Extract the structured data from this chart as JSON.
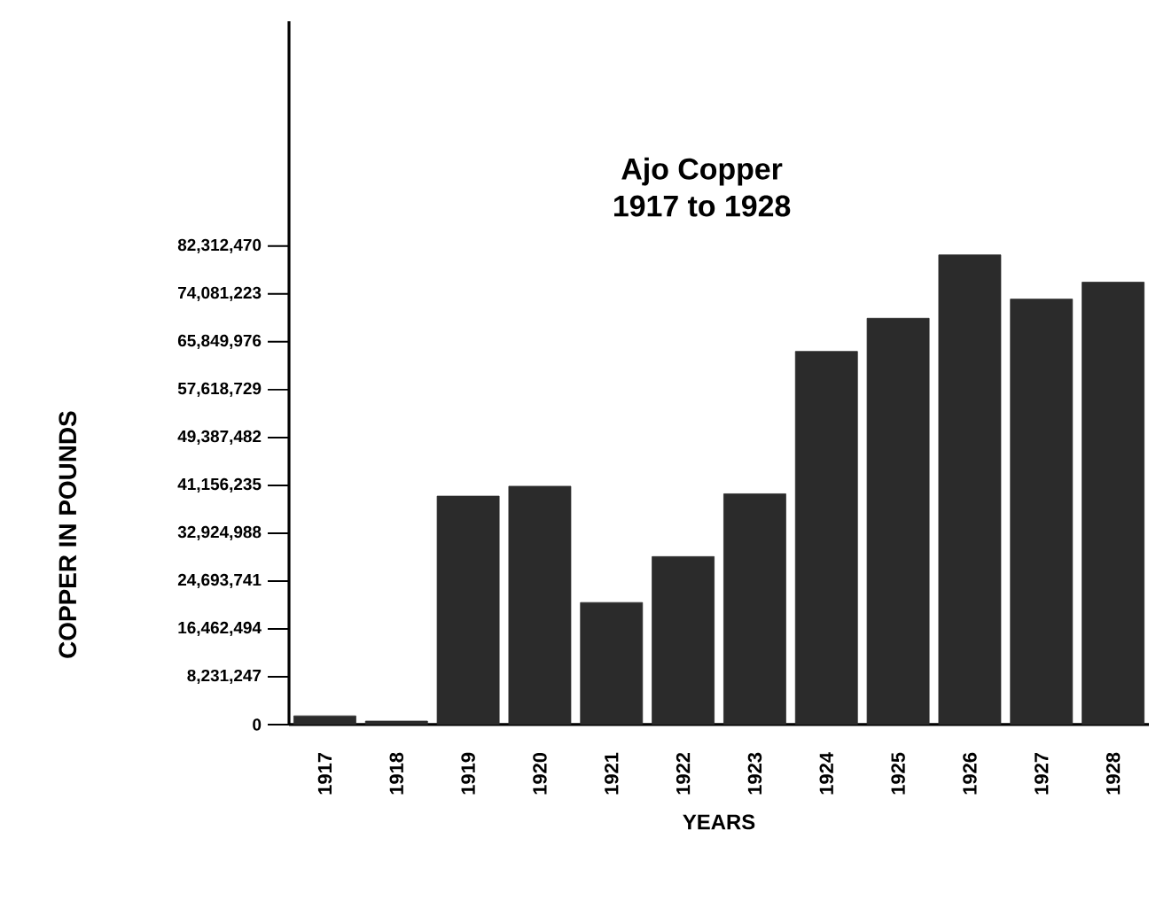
{
  "chart_data": {
    "type": "bar",
    "title": "Ajo Copper",
    "subtitle": "1917 to 1928",
    "xlabel": "YEARS",
    "ylabel": "COPPER IN POUNDS",
    "categories": [
      "1917",
      "1918",
      "1919",
      "1920",
      "1921",
      "1922",
      "1923",
      "1924",
      "1925",
      "1926",
      "1927",
      "1928"
    ],
    "values": [
      1500000,
      600000,
      39300000,
      41000000,
      21000000,
      28900000,
      39700000,
      64200000,
      69900000,
      80800000,
      73200000,
      76100000
    ],
    "color": "#2b2b2b",
    "ylim": [
      0,
      121000000
    ],
    "yticks": [
      0,
      {
        "value": 8231247,
        "label": "8,231,247"
      },
      {
        "value": 16462494,
        "label": "16,462,494"
      },
      {
        "value": 24693741,
        "label": "24,693,741"
      },
      {
        "value": 32924988,
        "label": "32,924,988"
      },
      {
        "value": 41156235,
        "label": "41,156,235"
      },
      {
        "value": 49387482,
        "label": "49,387,482"
      },
      {
        "value": 57618729,
        "label": "57,618,729"
      },
      {
        "value": 65849976,
        "label": "65,849,976"
      },
      {
        "value": 74081223,
        "label": "74,081,223"
      },
      {
        "value": 82312470,
        "label": "82,312,470"
      }
    ],
    "grid": false
  }
}
